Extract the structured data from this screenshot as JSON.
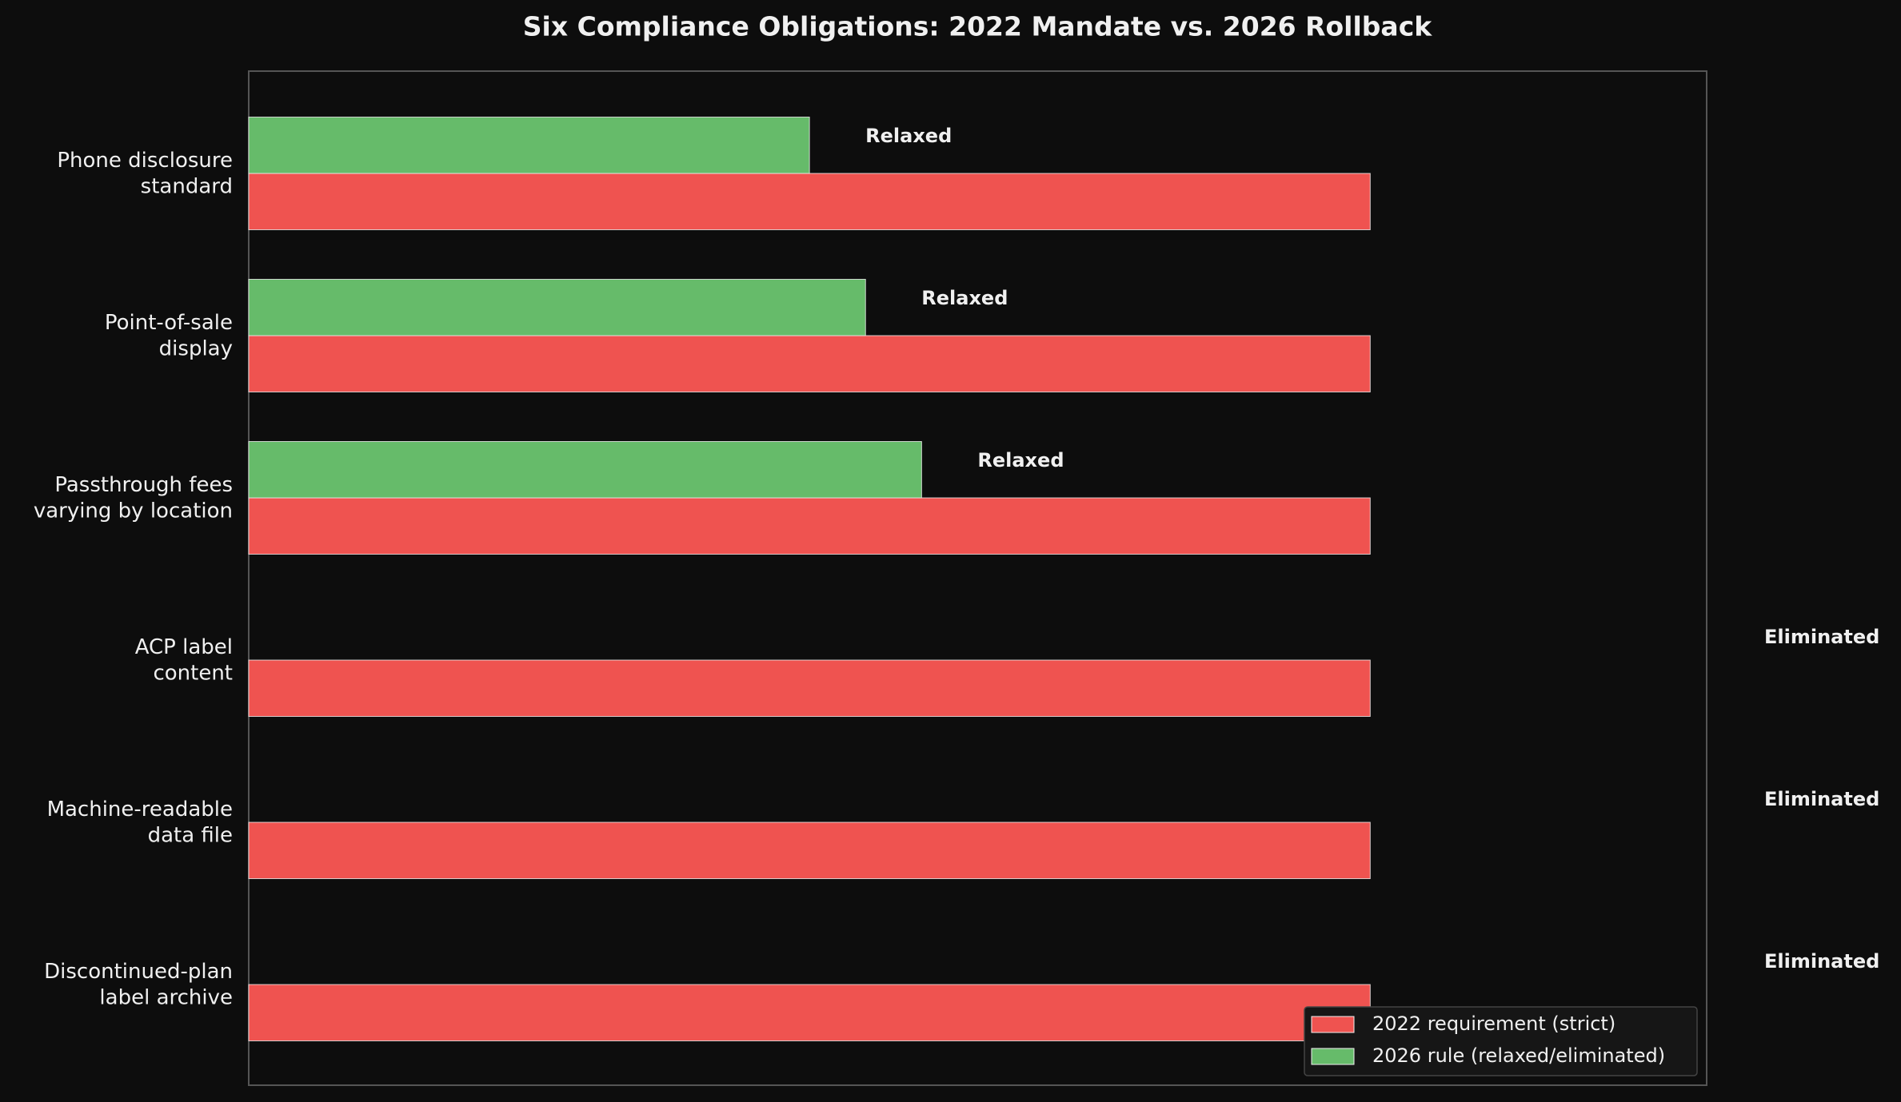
{
  "chart_data": {
    "type": "hbar",
    "title": "Six Compliance Obligations: 2022 Mandate vs. 2026 Rollback",
    "categories": [
      "Phone disclosure\nstandard",
      "Point-of-sale\ndisplay",
      "Passthrough fees\nvarying by location",
      "ACP label\ncontent",
      "Machine-readable\ndata file",
      "Discontinued-plan\nlabel archive"
    ],
    "series": [
      {
        "name": "2022 requirement (strict)",
        "color": "#ef5350",
        "values": [
          1.0,
          1.0,
          1.0,
          1.0,
          1.0,
          1.0
        ]
      },
      {
        "name": "2026 rule (relaxed/eliminated)",
        "color": "#66bb6a",
        "values": [
          0.5,
          0.55,
          0.6,
          0,
          0,
          0
        ]
      }
    ],
    "status_labels": [
      "Relaxed",
      "Relaxed",
      "Relaxed",
      "Eliminated",
      "Eliminated",
      "Eliminated"
    ],
    "xlim": [
      0,
      1.3
    ],
    "legend": "lower right"
  }
}
